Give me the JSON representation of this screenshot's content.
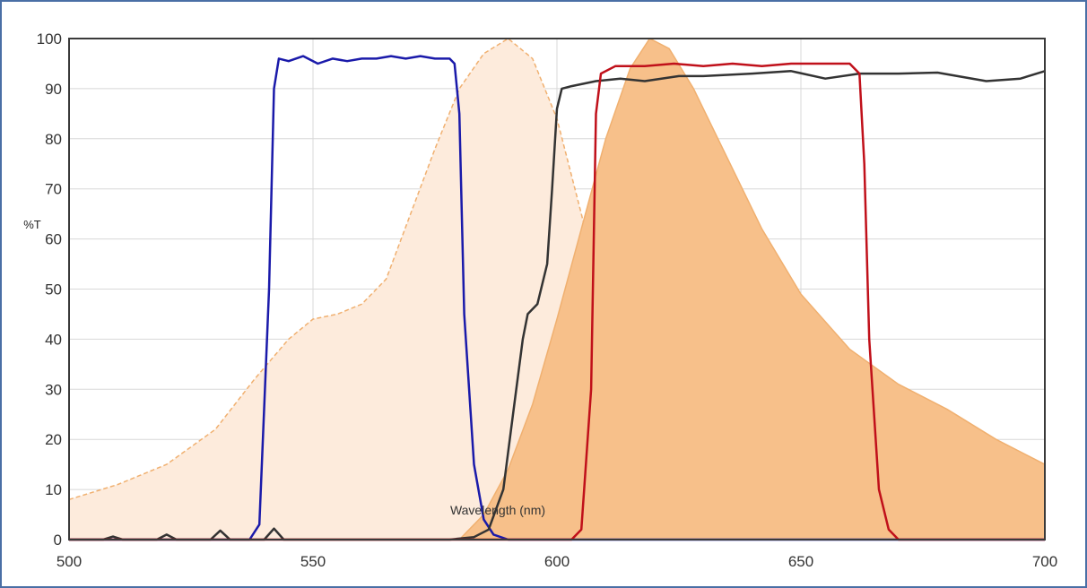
{
  "chart_data": {
    "type": "area",
    "xlabel": "Wavelength (nm)",
    "ylabel": "%T",
    "xlim": [
      500,
      700
    ],
    "ylim": [
      0,
      100
    ],
    "x_ticks": [
      "500",
      "550",
      "600",
      "650",
      "700"
    ],
    "y_ticks": [
      "0",
      "10",
      "20",
      "30",
      "40",
      "50",
      "60",
      "70",
      "80",
      "90",
      "100"
    ],
    "grid": true,
    "series": [
      {
        "kind": "excitation-spectrum",
        "style": "filled-light-dashed",
        "color": "#f0b070",
        "fill": "#fdebdc",
        "points": [
          [
            500,
            8
          ],
          [
            510,
            11
          ],
          [
            520,
            15
          ],
          [
            530,
            22
          ],
          [
            538,
            32
          ],
          [
            545,
            40
          ],
          [
            550,
            44
          ],
          [
            555,
            45
          ],
          [
            560,
            47
          ],
          [
            565,
            52
          ],
          [
            570,
            65
          ],
          [
            575,
            78
          ],
          [
            580,
            90
          ],
          [
            585,
            97
          ],
          [
            590,
            100
          ],
          [
            595,
            96
          ],
          [
            600,
            84
          ],
          [
            605,
            65
          ],
          [
            610,
            45
          ],
          [
            615,
            28
          ],
          [
            620,
            16
          ],
          [
            625,
            9
          ],
          [
            630,
            5
          ],
          [
            640,
            2
          ],
          [
            660,
            1
          ],
          [
            700,
            0
          ]
        ]
      },
      {
        "kind": "emission-spectrum",
        "style": "filled-orange",
        "color": "#f0b070",
        "fill": "#f7c08a",
        "points": [
          [
            580,
            0
          ],
          [
            585,
            5
          ],
          [
            590,
            14
          ],
          [
            595,
            27
          ],
          [
            600,
            44
          ],
          [
            605,
            62
          ],
          [
            610,
            80
          ],
          [
            615,
            94
          ],
          [
            619,
            100
          ],
          [
            623,
            98
          ],
          [
            628,
            90
          ],
          [
            635,
            76
          ],
          [
            642,
            62
          ],
          [
            650,
            49
          ],
          [
            660,
            38
          ],
          [
            670,
            31
          ],
          [
            680,
            26
          ],
          [
            690,
            20
          ],
          [
            700,
            15
          ]
        ]
      },
      {
        "kind": "exciter-filter",
        "color": "#1a1aaa",
        "points": [
          [
            500,
            0
          ],
          [
            537,
            0
          ],
          [
            539,
            3
          ],
          [
            541,
            50
          ],
          [
            542,
            90
          ],
          [
            543,
            96
          ],
          [
            545,
            95.5
          ],
          [
            548,
            96.5
          ],
          [
            551,
            95
          ],
          [
            554,
            96
          ],
          [
            557,
            95.5
          ],
          [
            560,
            96
          ],
          [
            563,
            96
          ],
          [
            566,
            96.5
          ],
          [
            569,
            96
          ],
          [
            572,
            96.5
          ],
          [
            575,
            96
          ],
          [
            578,
            96
          ],
          [
            579,
            95
          ],
          [
            580,
            85
          ],
          [
            581,
            45
          ],
          [
            583,
            15
          ],
          [
            585,
            4
          ],
          [
            587,
            1
          ],
          [
            590,
            0
          ],
          [
            700,
            0
          ]
        ]
      },
      {
        "kind": "dichroic-mirror",
        "color": "#333333",
        "points": [
          [
            500,
            0
          ],
          [
            507,
            0
          ],
          [
            509,
            0.6
          ],
          [
            511,
            0
          ],
          [
            518,
            0
          ],
          [
            520,
            1
          ],
          [
            522,
            0
          ],
          [
            529,
            0
          ],
          [
            531,
            1.8
          ],
          [
            533,
            0
          ],
          [
            540,
            0
          ],
          [
            542,
            2.2
          ],
          [
            544,
            0
          ],
          [
            570,
            0
          ],
          [
            578,
            0
          ],
          [
            583,
            0.5
          ],
          [
            586,
            2
          ],
          [
            589,
            10
          ],
          [
            591,
            25
          ],
          [
            593,
            40
          ],
          [
            594,
            45
          ],
          [
            596,
            47
          ],
          [
            598,
            55
          ],
          [
            599,
            70
          ],
          [
            600,
            86
          ],
          [
            601,
            90
          ],
          [
            603,
            90.5
          ],
          [
            608,
            91.5
          ],
          [
            613,
            92
          ],
          [
            618,
            91.5
          ],
          [
            625,
            92.5
          ],
          [
            630,
            92.5
          ],
          [
            640,
            93
          ],
          [
            648,
            93.5
          ],
          [
            655,
            92
          ],
          [
            662,
            93
          ],
          [
            670,
            93
          ],
          [
            678,
            93.2
          ],
          [
            688,
            91.5
          ],
          [
            695,
            92
          ],
          [
            700,
            93.5
          ]
        ]
      },
      {
        "kind": "emitter-filter",
        "color": "#c0101a",
        "points": [
          [
            500,
            0
          ],
          [
            603,
            0
          ],
          [
            605,
            2
          ],
          [
            607,
            30
          ],
          [
            608,
            85
          ],
          [
            609,
            93
          ],
          [
            612,
            94.5
          ],
          [
            618,
            94.5
          ],
          [
            624,
            95
          ],
          [
            630,
            94.5
          ],
          [
            636,
            95
          ],
          [
            642,
            94.5
          ],
          [
            648,
            95
          ],
          [
            654,
            95
          ],
          [
            660,
            95
          ],
          [
            662,
            93
          ],
          [
            663,
            75
          ],
          [
            664,
            40
          ],
          [
            666,
            10
          ],
          [
            668,
            2
          ],
          [
            670,
            0
          ],
          [
            700,
            0
          ]
        ]
      }
    ]
  }
}
